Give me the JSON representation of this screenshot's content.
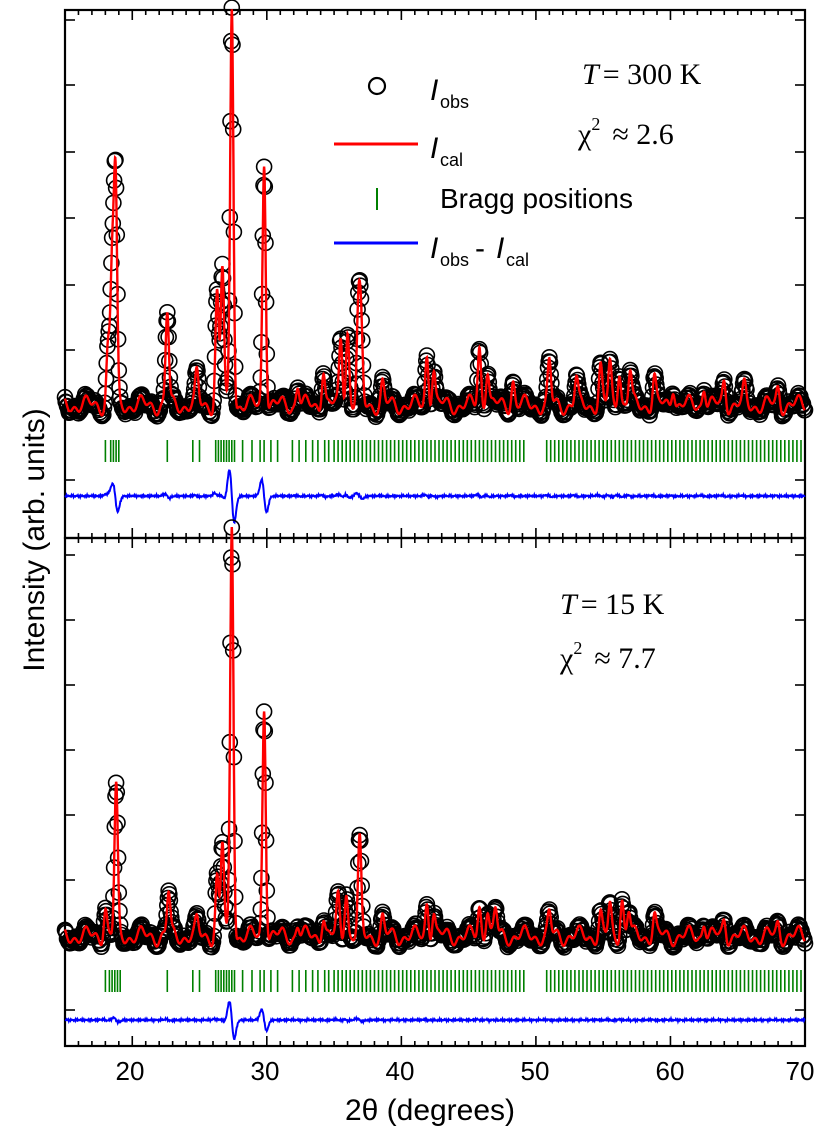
{
  "figure": {
    "ylabel": "Intensity (arb. units)",
    "xlabel": "2θ (degrees)",
    "x_ticks": [
      "20",
      "30",
      "40",
      "50",
      "60",
      "70"
    ]
  },
  "legend": {
    "obs_I": "I",
    "obs_sub": "obs",
    "cal_I": "I",
    "cal_sub": "cal",
    "bragg": "Bragg positions",
    "diff_I1": "I",
    "diff_sub1": "obs",
    "diff_dash": "-",
    "diff_I2": "I",
    "diff_sub2": "cal"
  },
  "panels": {
    "top": {
      "T_var": "T",
      "T_val": "= 300 K",
      "chi_sym": "χ",
      "chi_sup": "2",
      "chi_val": "≈ 2.6"
    },
    "bottom": {
      "T_var": "T",
      "T_val": "= 15 K",
      "chi_sym": "χ",
      "chi_sup": "2",
      "chi_val": "≈ 7.7"
    }
  },
  "colors": {
    "observed": "#000000",
    "calculated": "#ff0000",
    "bragg": "#008000",
    "difference": "#0000ff"
  },
  "chart_data": [
    {
      "type": "line",
      "panel": "T = 300 K",
      "xlim": [
        15,
        70
      ],
      "ylim": [
        0,
        1
      ],
      "y_ticks_shown": false,
      "background": 0.12,
      "peaks": [
        {
          "x": 18.2,
          "y": 0.14
        },
        {
          "x": 18.5,
          "y": 0.33
        },
        {
          "x": 18.75,
          "y": 0.54
        },
        {
          "x": 22.6,
          "y": 0.22
        },
        {
          "x": 24.8,
          "y": 0.07
        },
        {
          "x": 26.3,
          "y": 0.27
        },
        {
          "x": 26.7,
          "y": 0.33
        },
        {
          "x": 27.4,
          "y": 0.96
        },
        {
          "x": 29.8,
          "y": 0.59
        },
        {
          "x": 32.3,
          "y": 0.05
        },
        {
          "x": 34.2,
          "y": 0.09
        },
        {
          "x": 35.5,
          "y": 0.16
        },
        {
          "x": 36.0,
          "y": 0.18
        },
        {
          "x": 36.8,
          "y": 0.21
        },
        {
          "x": 37.0,
          "y": 0.18
        },
        {
          "x": 38.6,
          "y": 0.05
        },
        {
          "x": 41.9,
          "y": 0.12
        },
        {
          "x": 42.4,
          "y": 0.09
        },
        {
          "x": 45.8,
          "y": 0.14
        },
        {
          "x": 46.4,
          "y": 0.09
        },
        {
          "x": 48.3,
          "y": 0.06
        },
        {
          "x": 51.0,
          "y": 0.1
        },
        {
          "x": 53.0,
          "y": 0.06
        },
        {
          "x": 54.8,
          "y": 0.09
        },
        {
          "x": 55.5,
          "y": 0.1
        },
        {
          "x": 56.2,
          "y": 0.09
        },
        {
          "x": 57.0,
          "y": 0.08
        },
        {
          "x": 58.8,
          "y": 0.07
        },
        {
          "x": 60.2,
          "y": 0.05
        },
        {
          "x": 62.5,
          "y": 0.05
        },
        {
          "x": 64.0,
          "y": 0.06
        },
        {
          "x": 65.5,
          "y": 0.04
        },
        {
          "x": 68.0,
          "y": 0.04
        }
      ],
      "bragg_positions": [
        18.0,
        18.4,
        18.6,
        18.8,
        19.0,
        22.6,
        24.5,
        25.0,
        26.2,
        26.4,
        26.6,
        26.8,
        27.0,
        27.2,
        27.4,
        27.6,
        28.2,
        28.9,
        29.5,
        29.8,
        30.3,
        30.8,
        31.9,
        32.4,
        32.9,
        33.4,
        33.8,
        34.3,
        34.6,
        35.0,
        35.3,
        35.6,
        35.9,
        36.2,
        36.5,
        36.8,
        37.1,
        37.4,
        37.7,
        38.0,
        38.3,
        38.6,
        38.9,
        39.2,
        39.5,
        39.8,
        40.1,
        40.4,
        40.7,
        41.0,
        41.3,
        41.6,
        41.9,
        42.2,
        42.5,
        42.8,
        43.1,
        43.4,
        43.7,
        44.0,
        44.3,
        44.6,
        44.9,
        45.2,
        45.5,
        45.8,
        46.1,
        46.4,
        46.7,
        47.0,
        47.3,
        47.6,
        47.9,
        48.2,
        48.5,
        48.8,
        49.1,
        50.8,
        51.1,
        51.4,
        51.7,
        52.0,
        52.3,
        52.6,
        52.9,
        53.2,
        53.5,
        53.8,
        54.1,
        54.4,
        54.7,
        55.0,
        55.3,
        55.6,
        55.9,
        56.2,
        56.5,
        56.8,
        57.1,
        57.4,
        57.7,
        58.0,
        58.3,
        58.6,
        58.9,
        59.2,
        59.5,
        59.8,
        60.1,
        60.4,
        60.7,
        61.0,
        61.3,
        61.6,
        61.9,
        62.2,
        62.5,
        62.8,
        63.1,
        63.4,
        63.7,
        64.0,
        64.3,
        64.6,
        64.9,
        65.2,
        65.5,
        65.8,
        66.1,
        66.4,
        66.7,
        67.0,
        67.3,
        67.6,
        67.9,
        68.2,
        68.5,
        68.8,
        69.1,
        69.4,
        69.7
      ]
    },
    {
      "type": "line",
      "panel": "T = 15 K",
      "xlim": [
        15,
        70
      ],
      "ylim": [
        0,
        1
      ],
      "y_ticks_shown": false,
      "background": 0.12,
      "peaks": [
        {
          "x": 18.0,
          "y": 0.07
        },
        {
          "x": 18.8,
          "y": 0.35
        },
        {
          "x": 22.7,
          "y": 0.1
        },
        {
          "x": 24.8,
          "y": 0.03
        },
        {
          "x": 26.3,
          "y": 0.14
        },
        {
          "x": 26.7,
          "y": 0.22
        },
        {
          "x": 27.4,
          "y": 0.98
        },
        {
          "x": 29.8,
          "y": 0.55
        },
        {
          "x": 32.3,
          "y": 0.03
        },
        {
          "x": 34.2,
          "y": 0.05
        },
        {
          "x": 35.3,
          "y": 0.09
        },
        {
          "x": 35.9,
          "y": 0.11
        },
        {
          "x": 36.9,
          "y": 0.22
        },
        {
          "x": 38.6,
          "y": 0.04
        },
        {
          "x": 41.9,
          "y": 0.08
        },
        {
          "x": 42.4,
          "y": 0.06
        },
        {
          "x": 45.8,
          "y": 0.07
        },
        {
          "x": 46.4,
          "y": 0.07
        },
        {
          "x": 47.0,
          "y": 0.06
        },
        {
          "x": 51.0,
          "y": 0.05
        },
        {
          "x": 54.8,
          "y": 0.05
        },
        {
          "x": 55.5,
          "y": 0.07
        },
        {
          "x": 56.4,
          "y": 0.09
        },
        {
          "x": 56.9,
          "y": 0.06
        },
        {
          "x": 58.8,
          "y": 0.05
        },
        {
          "x": 62.5,
          "y": 0.04
        },
        {
          "x": 64.0,
          "y": 0.04
        },
        {
          "x": 68.0,
          "y": 0.03
        }
      ],
      "bragg_positions": [
        18.0,
        18.3,
        18.5,
        18.7,
        18.9,
        19.1,
        22.6,
        24.5,
        25.0,
        26.2,
        26.4,
        26.6,
        26.8,
        27.0,
        27.2,
        27.4,
        27.6,
        28.2,
        28.9,
        29.5,
        29.8,
        30.3,
        30.8,
        31.9,
        32.4,
        32.9,
        33.4,
        33.8,
        34.3,
        34.6,
        35.0,
        35.3,
        35.6,
        35.9,
        36.2,
        36.5,
        36.8,
        37.1,
        37.4,
        37.7,
        38.0,
        38.3,
        38.6,
        38.9,
        39.2,
        39.5,
        39.8,
        40.1,
        40.4,
        40.7,
        41.0,
        41.3,
        41.6,
        41.9,
        42.2,
        42.5,
        42.8,
        43.1,
        43.4,
        43.7,
        44.0,
        44.3,
        44.6,
        44.9,
        45.2,
        45.5,
        45.8,
        46.1,
        46.4,
        46.7,
        47.0,
        47.3,
        47.6,
        47.9,
        48.2,
        48.5,
        48.8,
        49.1,
        50.8,
        51.1,
        51.4,
        51.7,
        52.0,
        52.3,
        52.6,
        52.9,
        53.2,
        53.5,
        53.8,
        54.1,
        54.4,
        54.7,
        55.0,
        55.3,
        55.6,
        55.9,
        56.2,
        56.5,
        56.8,
        57.1,
        57.4,
        57.7,
        58.0,
        58.3,
        58.6,
        58.9,
        59.2,
        59.5,
        59.8,
        60.1,
        60.4,
        60.7,
        61.0,
        61.3,
        61.6,
        61.9,
        62.2,
        62.5,
        62.8,
        63.1,
        63.4,
        63.7,
        64.0,
        64.3,
        64.6,
        64.9,
        65.2,
        65.5,
        65.8,
        66.1,
        66.4,
        66.7,
        67.0,
        67.3,
        67.6,
        67.9,
        68.2,
        68.5,
        68.8,
        69.1,
        69.4,
        69.7
      ]
    }
  ]
}
